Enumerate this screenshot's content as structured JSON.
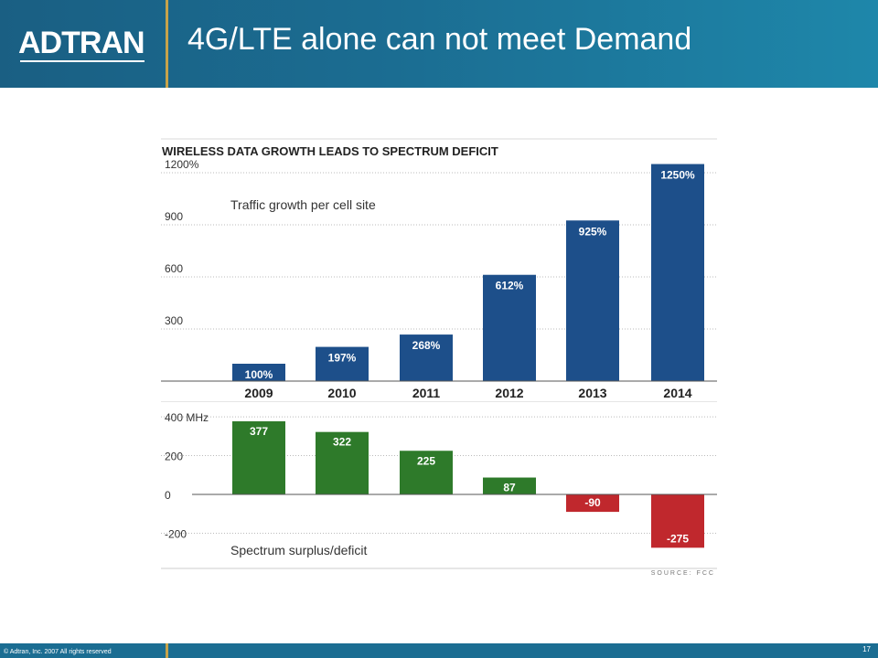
{
  "header": {
    "logo_text": "ADTRAN",
    "title": "4G/LTE alone can not meet Demand"
  },
  "footer": {
    "copyright": "© Adtran, Inc. 2007 All rights reserved",
    "page_number": "17"
  },
  "colors": {
    "header_bg": "#1b6d92",
    "accent_gold": "#c7a34a",
    "bar_blue": "#1d4f8a",
    "bar_green": "#2e7a2a",
    "bar_red": "#c0282d"
  },
  "chart_data": [
    {
      "type": "bar",
      "title": "WIRELESS DATA GROWTH LEADS TO SPECTRUM DEFICIT",
      "annotation": "Traffic growth per cell site",
      "categories": [
        "2009",
        "2010",
        "2011",
        "2012",
        "2013",
        "2014"
      ],
      "values": [
        100,
        197,
        268,
        612,
        925,
        1250
      ],
      "data_labels": [
        "100%",
        "197%",
        "268%",
        "612%",
        "925%",
        "1250%"
      ],
      "yticks": [
        "300",
        "600",
        "900",
        "1200%"
      ],
      "ylim": [
        0,
        1300
      ],
      "grid": true
    },
    {
      "type": "bar",
      "annotation": "Spectrum surplus/deficit",
      "categories": [
        "2009",
        "2010",
        "2011",
        "2012",
        "2013",
        "2014"
      ],
      "values": [
        377,
        322,
        225,
        87,
        -90,
        -275
      ],
      "data_labels": [
        "377",
        "322",
        "225",
        "87",
        "-90",
        "-275"
      ],
      "yticks": [
        "-200",
        "0",
        "200",
        "400 MHz"
      ],
      "ylim": [
        -300,
        450
      ],
      "grid": true,
      "source": "SOURCE: FCC"
    }
  ]
}
